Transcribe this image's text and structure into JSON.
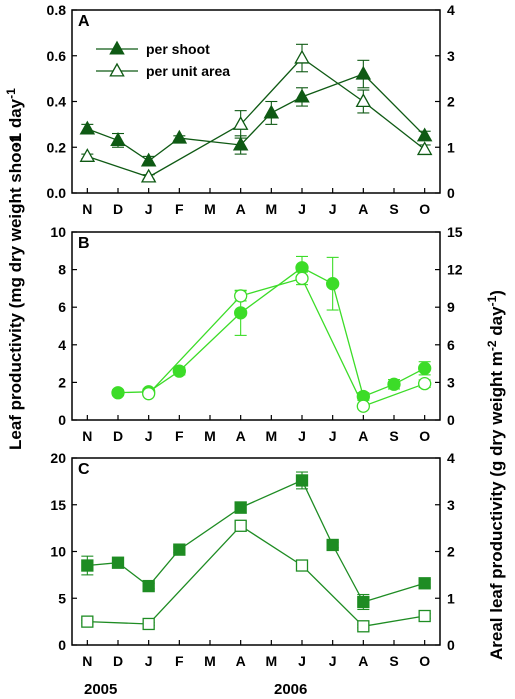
{
  "figure": {
    "left_axis_title": "Leaf productivity (mg dry weight shoot",
    "left_axis_suffix": "-1 day",
    "left_axis_suffix_sup": "-1",
    "right_axis_title": "Areal leaf productivity (g dry weight m",
    "right_axis_sup1": "-2",
    "right_axis_mid": " day",
    "right_axis_sup2": "-1",
    "right_axis_close": ")",
    "years": [
      "2005",
      "2006"
    ],
    "legend": {
      "per_shoot": "per shoot",
      "per_unit_area": "per unit area"
    },
    "colors": {
      "panel_a": "#0f5a14",
      "panel_b": "#3cdc28",
      "panel_c": "#1e8c23"
    }
  },
  "chart_data": [
    {
      "type": "line",
      "panel": "A",
      "categories": [
        "N",
        "D",
        "J",
        "F",
        "M",
        "A",
        "M",
        "J",
        "J",
        "A",
        "S",
        "O"
      ],
      "ylim_left": [
        0,
        0.8
      ],
      "yticks_left": [
        "0.0",
        "0.2",
        "0.4",
        "0.6",
        "0.8"
      ],
      "ylim_right": [
        0,
        4
      ],
      "yticks_right": [
        "0",
        "1",
        "2",
        "3",
        "4"
      ],
      "series": [
        {
          "name": "per shoot",
          "axis": "left",
          "marker": "filled-triangle",
          "points": [
            [
              1,
              0.28
            ],
            [
              2,
              0.23
            ],
            [
              3,
              0.14
            ],
            [
              4,
              0.24
            ],
            [
              6,
              0.21
            ],
            [
              7,
              0.35
            ],
            [
              8,
              0.42
            ],
            [
              10,
              0.52
            ],
            [
              12,
              0.25
            ]
          ],
          "err": [
            0.02,
            0.03,
            0.02,
            0.01,
            0.04,
            0.05,
            0.04,
            0.06,
            0.02
          ]
        },
        {
          "name": "per unit area",
          "axis": "right",
          "marker": "open-triangle",
          "points": [
            [
              1,
              0.8
            ],
            [
              3,
              0.35
            ],
            [
              6,
              1.5
            ],
            [
              8,
              2.95
            ],
            [
              10,
              2.0
            ],
            [
              12,
              0.95
            ]
          ],
          "err": [
            0.05,
            0.05,
            0.3,
            0.3,
            0.25,
            0.1
          ]
        }
      ]
    },
    {
      "type": "line",
      "panel": "B",
      "categories": [
        "N",
        "D",
        "J",
        "F",
        "M",
        "A",
        "M",
        "J",
        "J",
        "A",
        "S",
        "O"
      ],
      "ylim_left": [
        0,
        10
      ],
      "yticks_left": [
        "0",
        "2",
        "4",
        "6",
        "8",
        "10"
      ],
      "ylim_right": [
        0,
        15
      ],
      "yticks_right": [
        "0",
        "3",
        "6",
        "9",
        "12",
        "15"
      ],
      "series": [
        {
          "name": "",
          "axis": "left",
          "marker": "filled-circle",
          "points": [
            [
              2,
              1.45
            ],
            [
              3,
              1.5
            ],
            [
              4,
              2.6
            ],
            [
              6,
              5.7
            ],
            [
              8,
              8.1
            ],
            [
              9,
              7.25
            ],
            [
              10,
              1.25
            ],
            [
              11,
              1.9
            ],
            [
              12,
              2.75
            ]
          ],
          "err": [
            0.15,
            0.15,
            0.2,
            1.2,
            0.6,
            1.4,
            0.2,
            0.25,
            0.35
          ]
        },
        {
          "name": "",
          "axis": "right",
          "marker": "open-circle",
          "points": [
            [
              3,
              2.1
            ],
            [
              6,
              9.9
            ],
            [
              8,
              11.3
            ],
            [
              10,
              1.1
            ],
            [
              12,
              2.9
            ]
          ],
          "err": [
            0.15,
            0.4,
            0.5,
            0.15,
            0.3
          ]
        }
      ]
    },
    {
      "type": "line",
      "panel": "C",
      "categories": [
        "N",
        "D",
        "J",
        "F",
        "M",
        "A",
        "M",
        "J",
        "J",
        "A",
        "S",
        "O"
      ],
      "ylim_left": [
        0,
        20
      ],
      "yticks_left": [
        "0",
        "5",
        "10",
        "15",
        "20"
      ],
      "ylim_right": [
        0,
        4
      ],
      "yticks_right": [
        "0",
        "1",
        "2",
        "3",
        "4"
      ],
      "series": [
        {
          "name": "",
          "axis": "left",
          "marker": "filled-square",
          "points": [
            [
              1,
              8.5
            ],
            [
              2,
              8.8
            ],
            [
              3,
              6.3
            ],
            [
              4,
              10.2
            ],
            [
              6,
              14.7
            ],
            [
              8,
              17.6
            ],
            [
              9,
              10.7
            ],
            [
              10,
              4.6
            ],
            [
              12,
              6.6
            ]
          ],
          "err": [
            1.0,
            0.3,
            0.3,
            0.3,
            0.6,
            0.9,
            0.3,
            0.8,
            0.4
          ]
        },
        {
          "name": "",
          "axis": "right",
          "marker": "open-square",
          "points": [
            [
              1,
              0.5
            ],
            [
              3,
              0.45
            ],
            [
              6,
              2.55
            ],
            [
              8,
              1.7
            ],
            [
              10,
              0.4
            ],
            [
              12,
              0.62
            ]
          ],
          "err": [
            0.03,
            0.03,
            0.1,
            0.05,
            0.03,
            0.05
          ]
        }
      ]
    }
  ]
}
